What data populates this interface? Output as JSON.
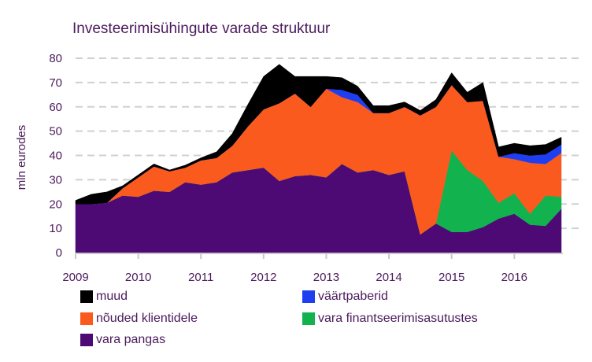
{
  "chart_data": {
    "type": "area",
    "stacked": true,
    "title": "Investeerimisühingute varade struktuur",
    "ylabel": "mln eurodes",
    "xlabel": "",
    "ylim": [
      0,
      80
    ],
    "yticks": [
      0,
      10,
      20,
      30,
      40,
      50,
      60,
      70,
      80
    ],
    "xlim": [
      2009.0,
      2016.75
    ],
    "xticks": [
      2009,
      2010,
      2011,
      2012,
      2013,
      2014,
      2015,
      2016
    ],
    "x": [
      2009.0,
      2009.25,
      2009.5,
      2009.75,
      2010.0,
      2010.25,
      2010.5,
      2010.75,
      2011.0,
      2011.25,
      2011.5,
      2011.75,
      2012.0,
      2012.25,
      2012.5,
      2012.75,
      2013.0,
      2013.25,
      2013.5,
      2013.75,
      2014.0,
      2014.25,
      2014.5,
      2014.75,
      2015.0,
      2015.25,
      2015.5,
      2015.75,
      2016.0,
      2016.25,
      2016.5,
      2016.75
    ],
    "grid": true,
    "legend_position": "bottom",
    "series": [
      {
        "name": "vara pangas",
        "color": "#4d0a74",
        "values": [
          20,
          20,
          20.5,
          23.5,
          23,
          25.5,
          25,
          29,
          28,
          29,
          33,
          34,
          35,
          29.5,
          31.5,
          32,
          31,
          36.5,
          33,
          34,
          32,
          33.5,
          7.5,
          12,
          8.5,
          8.5,
          10.5,
          14,
          16,
          11.5,
          11,
          18
        ]
      },
      {
        "name": "vara finantseerimisasutustes",
        "color": "#12b34e",
        "values": [
          0,
          0,
          0,
          0,
          0,
          0,
          0,
          0,
          0,
          0,
          0,
          0,
          0,
          0,
          0,
          0,
          0,
          0,
          0,
          0,
          0,
          0,
          0,
          0,
          33.5,
          25.5,
          19,
          6.5,
          8.5,
          4.5,
          12.5,
          5
        ]
      },
      {
        "name": "nõuded klientidele",
        "color": "#fa5a1e",
        "values": [
          0,
          0,
          0,
          3,
          8,
          10,
          8.5,
          6,
          10,
          10,
          11,
          18,
          24,
          32,
          34,
          28,
          36.5,
          27.5,
          29,
          23.5,
          25.5,
          26.5,
          49,
          48,
          27,
          28,
          33,
          19,
          14,
          21,
          13,
          18
        ]
      },
      {
        "name": "väärtpaberid",
        "color": "#1f3ef0",
        "values": [
          0,
          0,
          0,
          0,
          0,
          0,
          0,
          0,
          0,
          0,
          0,
          0,
          0,
          0,
          0,
          0,
          0,
          3,
          3,
          0,
          0,
          0,
          0,
          0,
          0,
          0,
          0,
          0,
          2.5,
          3,
          4,
          3.5
        ]
      },
      {
        "name": "muud",
        "color": "#000000",
        "values": [
          1.5,
          4,
          4.5,
          1,
          1,
          1,
          0.5,
          1,
          1,
          2.5,
          5,
          9,
          13.5,
          16,
          7,
          12.5,
          5,
          5,
          3.5,
          3,
          3,
          2,
          2,
          3,
          5,
          4,
          7.5,
          4,
          4,
          4,
          4,
          3
        ]
      }
    ]
  },
  "legend": {
    "muud": "muud",
    "vaartpaberid": "väärtpaberid",
    "nouded": "nõuded klientidele",
    "finants": "vara finantseerimisasutustes",
    "pangas": "vara pangas"
  }
}
